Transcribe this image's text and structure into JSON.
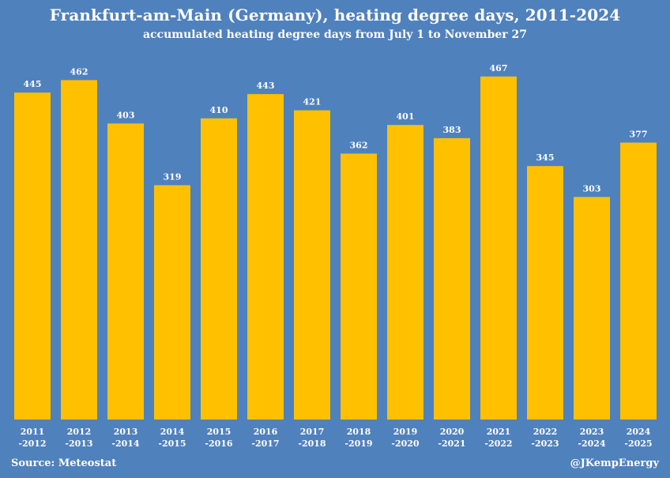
{
  "colors": {
    "background": "#4f81bd",
    "bar": "#ffc000",
    "text": "#ffffff"
  },
  "footer": {
    "source": "Source: Meteostat",
    "credit": "@JKempEnergy"
  },
  "chart_data": {
    "type": "bar",
    "title": "Frankfurt-am-Main (Germany), heating degree days, 2011-2024",
    "subtitle": "accumulated heating degree days from July 1 to November 27",
    "xlabel": "",
    "ylabel": "",
    "grid": false,
    "legend": "none",
    "ylim": [
      0,
      480
    ],
    "categories": [
      [
        "2011",
        "-2012"
      ],
      [
        "2012",
        "-2013"
      ],
      [
        "2013",
        "-2014"
      ],
      [
        "2014",
        "-2015"
      ],
      [
        "2015",
        "-2016"
      ],
      [
        "2016",
        "-2017"
      ],
      [
        "2017",
        "-2018"
      ],
      [
        "2018",
        "-2019"
      ],
      [
        "2019",
        "-2020"
      ],
      [
        "2020",
        "-2021"
      ],
      [
        "2021",
        "-2022"
      ],
      [
        "2022",
        "-2023"
      ],
      [
        "2023",
        "-2024"
      ],
      [
        "2024",
        "-2025"
      ]
    ],
    "values": [
      445,
      462,
      403,
      319,
      410,
      443,
      421,
      362,
      401,
      383,
      467,
      345,
      303,
      377
    ]
  }
}
